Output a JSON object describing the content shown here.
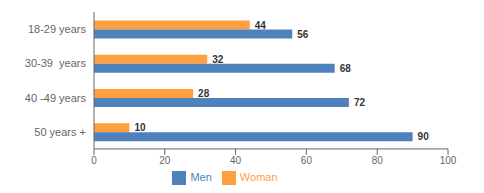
{
  "chart_data": {
    "type": "bar",
    "orientation": "horizontal",
    "categories": [
      "18-29 years",
      "30-39  years",
      "40 -49 years",
      "50 years +"
    ],
    "series": [
      {
        "name": "Woman",
        "color": "#FFA040",
        "values": [
          44,
          32,
          28,
          10
        ]
      },
      {
        "name": "Men",
        "color": "#4F81BD",
        "values": [
          56,
          68,
          72,
          90
        ]
      }
    ],
    "xlim": [
      0,
      100
    ],
    "xticks": [
      0,
      20,
      40,
      60,
      80,
      100
    ],
    "data_labels": true,
    "grid": false,
    "legend": "bottom"
  }
}
